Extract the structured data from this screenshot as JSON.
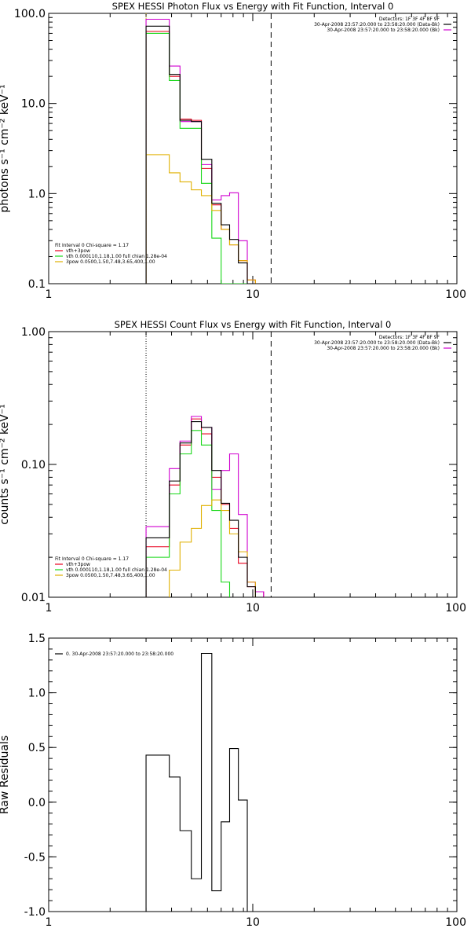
{
  "colors": {
    "black": "#000000",
    "red": "#e8001e",
    "magenta": "#d000d0",
    "green": "#18d818",
    "gold": "#e0b000"
  },
  "chart_data": [
    {
      "type": "line",
      "title": "SPEX HESSI Photon Flux vs Energy with Fit Function, Interval 0",
      "ylabel": "photons s⁻¹ cm⁻² keV⁻¹",
      "xlabel": "",
      "x_scale": "log",
      "y_scale": "log",
      "xlim": [
        1,
        100
      ],
      "ylim": [
        0.1,
        100
      ],
      "x_ticks": [
        {
          "v": 1,
          "label": "1"
        },
        {
          "v": 10,
          "label": "10"
        },
        {
          "v": 100,
          "label": "100"
        }
      ],
      "y_ticks": [
        {
          "v": 100,
          "label": "100.0"
        },
        {
          "v": 10,
          "label": "10.0"
        },
        {
          "v": 1,
          "label": "1.0"
        },
        {
          "v": 0.1,
          "label": "0.1"
        }
      ],
      "vlines": [
        {
          "x": 3.0,
          "style": "dotted",
          "color": "#e0b000"
        },
        {
          "x": 12.3,
          "style": "dashed"
        }
      ],
      "header": [
        "Detectors: 1F 3F 4F 8F 9F",
        "30-Apr-2008 23:57:20.000 to 23:58:20.000 (Data-Bk)",
        "30-Apr-2008 23:57:20.000 to 23:58:20.000 (Bk)"
      ],
      "legend": [
        "Fit Interval 0   Chi-square = 1.17",
        "vth+3pow",
        "vth 0.000110,1.18,1.00   full chian 1.28e-04",
        "3pow 0.0500,1.50,7.48,3.65,400,1.00"
      ],
      "legend_title_index": 0,
      "legend_colors": [
        "#e8001e",
        "#18d818",
        "#e0b000"
      ],
      "header_colors": [
        "#000000",
        "#d000d0"
      ],
      "edges": [
        3.0,
        3.9,
        4.4,
        5.0,
        5.6,
        6.3,
        7.0,
        7.7,
        8.5,
        9.4,
        10.3,
        11.3,
        12.3,
        13.8
      ],
      "series": [
        {
          "name": "",
          "color": "#e8001e",
          "values": [
            63,
            20,
            6.7,
            6.5,
            1.9,
            0.75,
            0.4,
            0.27,
            0.18,
            0.11
          ]
        },
        {
          "name": "",
          "color": "#d000d0",
          "values": [
            86,
            26,
            6.3,
            6.3,
            2.1,
            0.85,
            0.95,
            1.02,
            0.3,
            0.1
          ]
        },
        {
          "name": "",
          "color": "#18d818",
          "values": [
            60,
            18,
            5.3,
            5.3,
            1.3,
            0.32,
            0.1,
            0.1,
            0.1,
            0.1
          ]
        },
        {
          "name": "",
          "color": "#e0b000",
          "values": [
            2.7,
            1.7,
            1.35,
            1.1,
            0.95,
            0.65,
            0.4,
            0.27,
            0.18,
            0.11
          ]
        },
        {
          "name": "",
          "color": "#000000",
          "values": [
            72,
            21,
            6.5,
            6.3,
            2.4,
            0.78,
            0.45,
            0.31,
            0.17,
            0.1
          ]
        }
      ]
    },
    {
      "type": "line",
      "title": "SPEX HESSI Count Flux vs Energy with Fit Function, Interval 0",
      "ylabel": "counts s⁻¹ cm⁻² keV⁻¹",
      "xlabel": "",
      "x_scale": "log",
      "y_scale": "log",
      "xlim": [
        1,
        100
      ],
      "ylim": [
        0.01,
        1
      ],
      "x_ticks": [
        {
          "v": 1,
          "label": "1"
        },
        {
          "v": 10,
          "label": "10"
        },
        {
          "v": 100,
          "label": "100"
        }
      ],
      "y_ticks": [
        {
          "v": 1,
          "label": "1.00"
        },
        {
          "v": 0.1,
          "label": "0.10"
        },
        {
          "v": 0.01,
          "label": "0.01"
        }
      ],
      "vlines": [
        {
          "x": 3.0,
          "style": "dotted"
        },
        {
          "x": 12.3,
          "style": "dashed"
        }
      ],
      "header": [
        "Detectors: 1F 3F 4F 8F 9F",
        "30-Apr-2008 23:57:20.000 to 23:58:20.000 (Data-Bk)",
        "30-Apr-2008 23:57:20.000 to 23:58:20.000 (Bk)"
      ],
      "legend": [
        "Fit Interval 0   Chi-square = 1.17",
        "vth+3pow",
        "vth 0.000110,1.18,1.00   full chian 1.28e-04",
        "3pow 0.0500,1.50,7.48,3.65,400,1.00"
      ],
      "legend_title_index": 0,
      "legend_colors": [
        "#e8001e",
        "#18d818",
        "#e0b000"
      ],
      "header_colors": [
        "#000000",
        "#d000d0"
      ],
      "edges": [
        3.0,
        3.9,
        4.4,
        5.0,
        5.6,
        6.3,
        7.0,
        7.7,
        8.5,
        9.4,
        10.3,
        11.3,
        12.3,
        13.8,
        15.0
      ],
      "series": [
        {
          "name": "",
          "color": "#e8001e",
          "values": [
            0.024,
            0.07,
            0.14,
            0.22,
            0.17,
            0.08,
            0.05,
            0.033,
            0.018,
            0.012,
            0.011
          ]
        },
        {
          "name": "",
          "color": "#d000d0",
          "values": [
            0.034,
            0.093,
            0.15,
            0.23,
            0.19,
            0.065,
            0.09,
            0.12,
            0.042,
            0.013,
            0.011
          ]
        },
        {
          "name": "",
          "color": "#18d818",
          "values": [
            0.02,
            0.06,
            0.12,
            0.18,
            0.14,
            0.045,
            0.013,
            0.008,
            0.008,
            0.008,
            0.008
          ]
        },
        {
          "name": "",
          "color": "#e0b000",
          "values": [
            0.008,
            0.016,
            0.026,
            0.033,
            0.049,
            0.054,
            0.045,
            0.03,
            0.022,
            0.013,
            0.01
          ]
        },
        {
          "name": "",
          "color": "#000000",
          "values": [
            0.028,
            0.075,
            0.145,
            0.21,
            0.19,
            0.09,
            0.051,
            0.038,
            0.02,
            0.012,
            0.01
          ]
        }
      ]
    },
    {
      "type": "line",
      "title": "",
      "ylabel": "Raw Residuals",
      "xlabel": "",
      "x_scale": "log",
      "y_scale": "linear",
      "xlim": [
        1,
        100
      ],
      "ylim": [
        -1.0,
        1.5
      ],
      "x_ticks": [
        {
          "v": 1,
          "label": "1"
        },
        {
          "v": 10,
          "label": "10"
        },
        {
          "v": 100,
          "label": "100"
        }
      ],
      "y_ticks": [
        {
          "v": 1.5,
          "label": "1.5"
        },
        {
          "v": 1.0,
          "label": "1.0"
        },
        {
          "v": 0.5,
          "label": "0.5"
        },
        {
          "v": 0.0,
          "label": "0.0"
        },
        {
          "v": -0.5,
          "label": "-0.5"
        },
        {
          "v": -1.0,
          "label": "-1.0"
        }
      ],
      "vlines": [],
      "header": [],
      "legend": [
        "0. 30-Apr-2008 23:57:20.000 to 23:58:20.000"
      ],
      "legend_title_index": -1,
      "legend_colors": [
        "#000000"
      ],
      "header_colors": [],
      "edges": [
        3.0,
        3.9,
        4.4,
        5.0,
        5.6,
        6.3,
        7.0,
        7.7,
        8.5,
        9.4,
        10.3,
        11.3,
        12.3
      ],
      "series": [
        {
          "name": "",
          "color": "#000000",
          "values": [
            0.43,
            0.23,
            -0.26,
            -0.7,
            1.36,
            -0.81,
            -0.18,
            0.49,
            0.02
          ]
        }
      ]
    }
  ]
}
